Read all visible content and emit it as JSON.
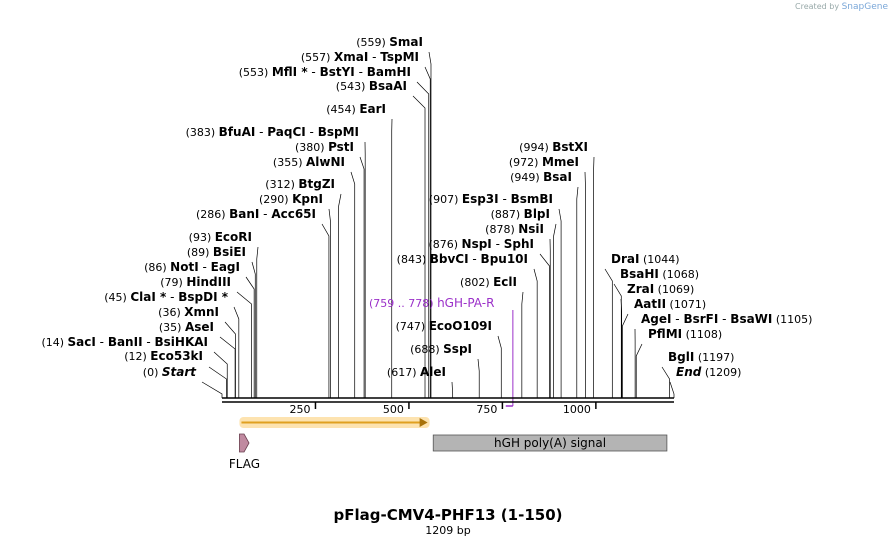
{
  "credit": {
    "prefix": "Created by",
    "brand": "SnapGene"
  },
  "plasmid": {
    "name": "pFlag-CMV4-PHF13 (1-150)",
    "length": "1209 bp",
    "total_bp": 1209
  },
  "sites": [
    {
      "pos": 0,
      "label": [
        [
          "(0) ",
          "pos"
        ],
        [
          "Start",
          "nmi"
        ]
      ]
    },
    {
      "pos": 12,
      "label": [
        [
          "(12) ",
          "pos"
        ],
        [
          "Eco53kI",
          "nm"
        ]
      ]
    },
    {
      "pos": 14,
      "label": [
        [
          "(14) ",
          "pos"
        ],
        [
          "SacI",
          "nm"
        ],
        [
          "  -  ",
          ""
        ],
        [
          "BanII",
          "nm"
        ],
        [
          "  -  ",
          ""
        ],
        [
          "BsiHKAI",
          "nm"
        ]
      ]
    },
    {
      "pos": 35,
      "label": [
        [
          "(35) ",
          "pos"
        ],
        [
          "AseI",
          "nm"
        ]
      ]
    },
    {
      "pos": 36,
      "label": [
        [
          "(36) ",
          "pos"
        ],
        [
          "XmnI",
          "nm"
        ]
      ]
    },
    {
      "pos": 45,
      "label": [
        [
          "(45) ",
          "pos"
        ],
        [
          "ClaI *",
          "nm"
        ],
        [
          "  -  ",
          ""
        ],
        [
          "BspDI *",
          "nm"
        ]
      ]
    },
    {
      "pos": 79,
      "label": [
        [
          "(79) ",
          "pos"
        ],
        [
          "HindIII",
          "nm"
        ]
      ]
    },
    {
      "pos": 86,
      "label": [
        [
          "(86) ",
          "pos"
        ],
        [
          "NotI",
          "nm"
        ],
        [
          "  -  ",
          ""
        ],
        [
          "EagI",
          "nm"
        ]
      ]
    },
    {
      "pos": 89,
      "label": [
        [
          "(89) ",
          "pos"
        ],
        [
          "BsiEI",
          "nm"
        ]
      ]
    },
    {
      "pos": 93,
      "label": [
        [
          "(93) ",
          "pos"
        ],
        [
          "EcoRI",
          "nm"
        ]
      ]
    },
    {
      "pos": 286,
      "label": [
        [
          "(286) ",
          "pos"
        ],
        [
          "BanI",
          "nm"
        ],
        [
          "  -  ",
          ""
        ],
        [
          "Acc65I",
          "nm"
        ]
      ]
    },
    {
      "pos": 290,
      "label": [
        [
          "(290) ",
          "pos"
        ],
        [
          "KpnI",
          "nm"
        ]
      ]
    },
    {
      "pos": 312,
      "label": [
        [
          "(312) ",
          "pos"
        ],
        [
          "BtgZI",
          "nm"
        ]
      ]
    },
    {
      "pos": 355,
      "label": [
        [
          "(355) ",
          "pos"
        ],
        [
          "AlwNI",
          "nm"
        ]
      ]
    },
    {
      "pos": 380,
      "label": [
        [
          "(380) ",
          "pos"
        ],
        [
          "PstI",
          "nm"
        ]
      ]
    },
    {
      "pos": 383,
      "label": [
        [
          "(383) ",
          "pos"
        ],
        [
          "BfuAI",
          "nm"
        ],
        [
          "  -  ",
          ""
        ],
        [
          "PaqCI",
          "nm"
        ],
        [
          "  -  ",
          ""
        ],
        [
          "BspMI",
          "nm"
        ]
      ]
    },
    {
      "pos": 454,
      "label": [
        [
          "(454) ",
          "pos"
        ],
        [
          "EarI",
          "nm"
        ]
      ]
    },
    {
      "pos": 543,
      "label": [
        [
          "(543) ",
          "pos"
        ],
        [
          "BsaAI",
          "nm"
        ]
      ]
    },
    {
      "pos": 553,
      "label": [
        [
          "(553) ",
          "pos"
        ],
        [
          "MflI *",
          "nm"
        ],
        [
          "  -  ",
          ""
        ],
        [
          "BstYI",
          "nm"
        ],
        [
          "  -  ",
          ""
        ],
        [
          "BamHI",
          "nm"
        ]
      ]
    },
    {
      "pos": 557,
      "label": [
        [
          "(557) ",
          "pos"
        ],
        [
          "XmaI",
          "nm"
        ],
        [
          "  -  ",
          ""
        ],
        [
          "TspMI",
          "nm"
        ]
      ]
    },
    {
      "pos": 559,
      "label": [
        [
          "(559) ",
          "pos"
        ],
        [
          "SmaI",
          "nm"
        ]
      ]
    },
    {
      "pos": 617,
      "label": [
        [
          "(617) ",
          "pos"
        ],
        [
          "AleI",
          "nm"
        ]
      ]
    },
    {
      "pos": 688,
      "label": [
        [
          "(688) ",
          "pos"
        ],
        [
          "SspI",
          "nm"
        ]
      ]
    },
    {
      "pos": 747,
      "label": [
        [
          "(747) ",
          "pos"
        ],
        [
          "EcoO109I",
          "nm"
        ]
      ]
    },
    {
      "pos": 802,
      "label": [
        [
          "(802) ",
          "pos"
        ],
        [
          "EclI",
          "nm"
        ]
      ]
    },
    {
      "pos": 843,
      "label": [
        [
          "(843) ",
          "pos"
        ],
        [
          "BbvCI",
          "nm"
        ],
        [
          "  -  ",
          ""
        ],
        [
          "Bpu10I",
          "nm"
        ]
      ]
    },
    {
      "pos": 876,
      "label": [
        [
          "(876) ",
          "pos"
        ],
        [
          "NspI",
          "nm"
        ],
        [
          "  -  ",
          ""
        ],
        [
          "SphI",
          "nm"
        ]
      ]
    },
    {
      "pos": 878,
      "label": [
        [
          "(878) ",
          "pos"
        ],
        [
          "NsiI",
          "nm"
        ]
      ]
    },
    {
      "pos": 887,
      "label": [
        [
          "(887) ",
          "pos"
        ],
        [
          "BlpI",
          "nm"
        ]
      ]
    },
    {
      "pos": 907,
      "label": [
        [
          "(907) ",
          "pos"
        ],
        [
          "Esp3I",
          "nm"
        ],
        [
          "  -  ",
          ""
        ],
        [
          "BsmBI",
          "nm"
        ]
      ]
    },
    {
      "pos": 949,
      "label": [
        [
          "(949) ",
          "pos"
        ],
        [
          "BsaI",
          "nm"
        ]
      ]
    },
    {
      "pos": 972,
      "label": [
        [
          "(972) ",
          "pos"
        ],
        [
          "MmeI",
          "nm"
        ]
      ]
    },
    {
      "pos": 994,
      "label": [
        [
          "(994) ",
          "pos"
        ],
        [
          "BstXI",
          "nm"
        ]
      ]
    },
    {
      "pos": 1044,
      "label": [
        [
          "DraI",
          "nm"
        ],
        [
          "  (1044)",
          "pos"
        ]
      ]
    },
    {
      "pos": 1068,
      "label": [
        [
          "BsaHI",
          "nm"
        ],
        [
          "  (1068)",
          "pos"
        ]
      ]
    },
    {
      "pos": 1069,
      "label": [
        [
          "ZraI",
          "nm"
        ],
        [
          "  (1069)",
          "pos"
        ]
      ]
    },
    {
      "pos": 1071,
      "label": [
        [
          "AatII",
          "nm"
        ],
        [
          "  (1071)",
          "pos"
        ]
      ]
    },
    {
      "pos": 1105,
      "label": [
        [
          "AgeI",
          "nm"
        ],
        [
          "  -  ",
          ""
        ],
        [
          "BsrFI",
          "nm"
        ],
        [
          "  -  ",
          ""
        ],
        [
          "BsaWI",
          "nm"
        ],
        [
          "   (1105)",
          "pos"
        ]
      ]
    },
    {
      "pos": 1108,
      "label": [
        [
          "PflMI",
          "nm"
        ],
        [
          "  (1108)",
          "pos"
        ]
      ]
    },
    {
      "pos": 1197,
      "label": [
        [
          "BglI",
          "nm"
        ],
        [
          "  (1197)",
          "pos"
        ]
      ]
    },
    {
      "pos": 1209,
      "label": [
        [
          "End",
          "nmi"
        ],
        [
          "  (1209)",
          "pos"
        ]
      ]
    }
  ],
  "primer": {
    "range_text": "(759 .. 778)",
    "name": "hGH-PA-R",
    "start": 759,
    "end": 778,
    "color": "#9b30c9"
  },
  "ruler": {
    "ticks": [
      250,
      500,
      750,
      1000
    ]
  },
  "features": [
    {
      "name": "FLAG",
      "start": 52,
      "end": 75,
      "fill": "#c08aa0",
      "type": "tag"
    },
    {
      "name": "",
      "start": 52,
      "end": 550,
      "fill": "#f5c36a",
      "type": "orf"
    },
    {
      "name": "hGH poly(A) signal",
      "start": 565,
      "end": 1190,
      "fill": "#b4b4b4",
      "type": "box"
    }
  ]
}
